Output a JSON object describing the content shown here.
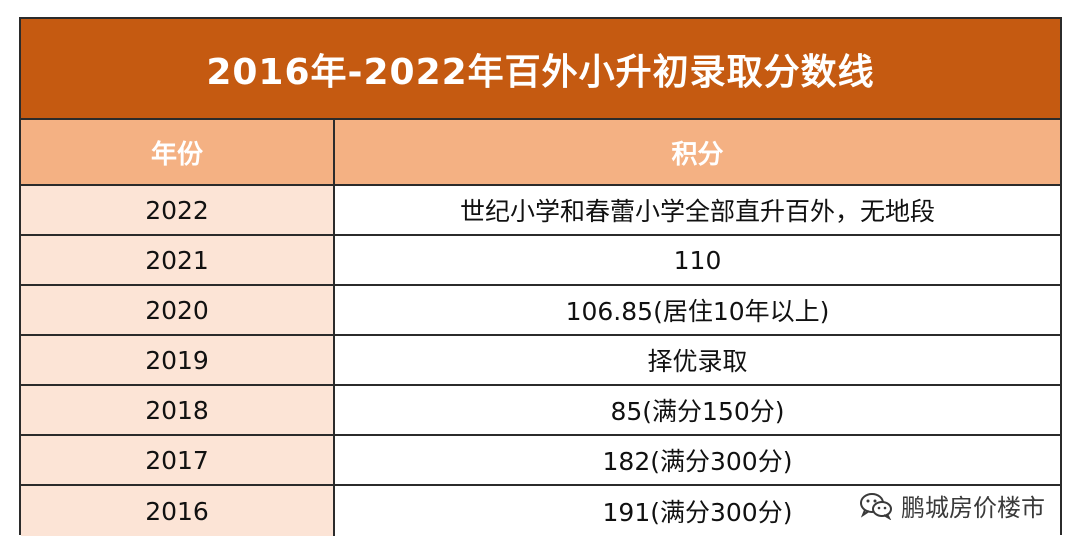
{
  "title": "2016年-2022年百外小升初录取分数线",
  "headers": {
    "year": "年份",
    "score": "积分"
  },
  "rows": [
    {
      "year": "2022",
      "score": "世纪小学和春蕾小学全部直升百外，无地段"
    },
    {
      "year": "2021",
      "score": "110"
    },
    {
      "year": "2020",
      "score": "106.85(居住10年以上)"
    },
    {
      "year": "2019",
      "score": "择优录取"
    },
    {
      "year": "2018",
      "score": "85(满分150分)"
    },
    {
      "year": "2017",
      "score": "182(满分300分)"
    },
    {
      "year": "2016",
      "score": "191(满分300分)"
    }
  ],
  "watermark": {
    "icon": "wechat-icon",
    "text": "鹏城房价楼市"
  },
  "colors": {
    "title_bg": "#c55a11",
    "header_bg": "#f4b183",
    "year_cell_bg": "#fce4d6",
    "border": "#2b2b2b"
  }
}
